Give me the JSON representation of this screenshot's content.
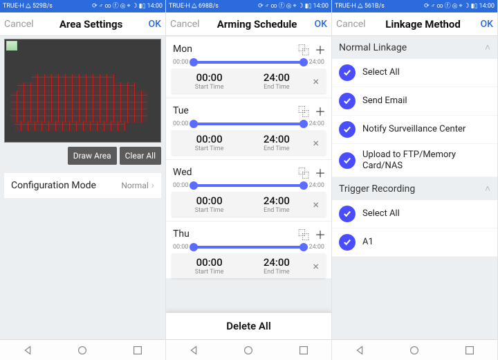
{
  "colors": {
    "accent": "#2b6bdc",
    "slider": "#5a6cff",
    "check": "#4a4cff",
    "grid": "#c81e1e",
    "video_bg": "#3c3c3c",
    "darkbtn": "#5b5b5b"
  },
  "statusbar": {
    "carrier": "TRUE-H",
    "rates": [
      "529B/s",
      "698B/s",
      "561B/s"
    ],
    "time": "14:00"
  },
  "screens": [
    {
      "title": "Area Settings",
      "cancel": "Cancel",
      "ok": "OK",
      "draw_btn": "Draw Area",
      "clear_btn": "Clear All",
      "config_label": "Configuration Mode",
      "config_value": "Normal"
    },
    {
      "title": "Arming Schedule",
      "cancel": "Cancel",
      "ok": "OK",
      "days": [
        {
          "name": "Mon",
          "start_label": "00:00",
          "end_label": "24:00",
          "start": "00:00",
          "start_sub": "Start Time",
          "end": "24:00",
          "end_sub": "End Time"
        },
        {
          "name": "Tue",
          "start_label": "00:00",
          "end_label": "24:00",
          "start": "00:00",
          "start_sub": "Start Time",
          "end": "24:00",
          "end_sub": "End Time"
        },
        {
          "name": "Wed",
          "start_label": "00:00",
          "end_label": "24:00",
          "start": "00:00",
          "start_sub": "Start Time",
          "end": "24:00",
          "end_sub": "End Time"
        },
        {
          "name": "Thu",
          "start_label": "00:00",
          "end_label": "24:00",
          "start": "00:00",
          "start_sub": "Start Time",
          "end": "24:00",
          "end_sub": "End Time"
        }
      ],
      "delete_all": "Delete All"
    },
    {
      "title": "Linkage Method",
      "cancel": "Cancel",
      "ok": "OK",
      "sections": [
        {
          "title": "Normal Linkage",
          "items": [
            {
              "label": "Select All"
            },
            {
              "label": "Send Email"
            },
            {
              "label": "Notify Surveillance Center"
            },
            {
              "label": "Upload to FTP/Memory Card/NAS"
            }
          ]
        },
        {
          "title": "Trigger Recording",
          "items": [
            {
              "label": "Select All"
            },
            {
              "label": "A1"
            }
          ]
        }
      ]
    }
  ]
}
